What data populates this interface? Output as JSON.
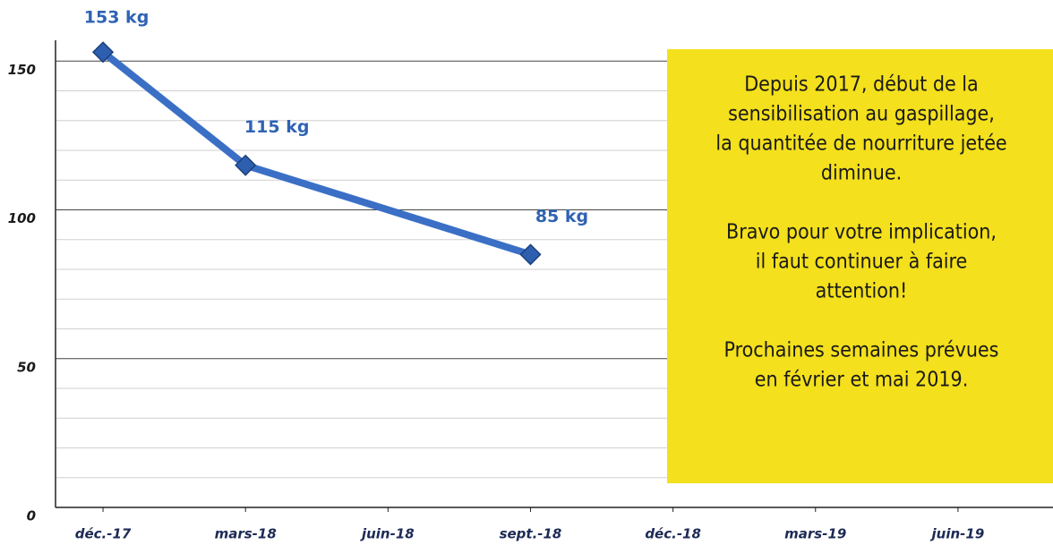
{
  "chart_data": {
    "type": "line",
    "x": [
      "2017-12",
      "2018-03",
      "2018-09"
    ],
    "series": [
      {
        "color": "#3b6fc6",
        "values": [
          153,
          115,
          85
        ],
        "value_labels": [
          "153 kg",
          "115 kg",
          "85 kg"
        ]
      }
    ],
    "xlim": [
      "2017-11",
      "2019-08"
    ],
    "xticks": [
      {
        "value": "2017-12",
        "label": "déc.-17"
      },
      {
        "value": "2018-03",
        "label": "mars-18"
      },
      {
        "value": "2018-06",
        "label": "juin-18"
      },
      {
        "value": "2018-09",
        "label": "sept.-18"
      },
      {
        "value": "2018-12",
        "label": "déc.-18"
      },
      {
        "value": "2019-03",
        "label": "mars-19"
      },
      {
        "value": "2019-06",
        "label": "juin-19"
      }
    ],
    "ylim": [
      0,
      157
    ],
    "yticks": [
      0,
      50,
      100,
      150
    ],
    "yminorticks": [
      10,
      20,
      30,
      40,
      60,
      70,
      80,
      90,
      110,
      120,
      130,
      140
    ],
    "grid": true,
    "annotation": {
      "color": "#f4e01c",
      "paragraphs": [
        [
          "Depuis 2017, début de la",
          "sensibilisation au gaspillage,",
          "la quantitée de nourriture jetée",
          "diminue."
        ],
        [
          "Bravo pour votre implication,",
          "il faut continuer à faire",
          "attention!"
        ],
        [
          "Prochaines semaines prévues",
          "en  février et mai 2019."
        ]
      ]
    }
  }
}
